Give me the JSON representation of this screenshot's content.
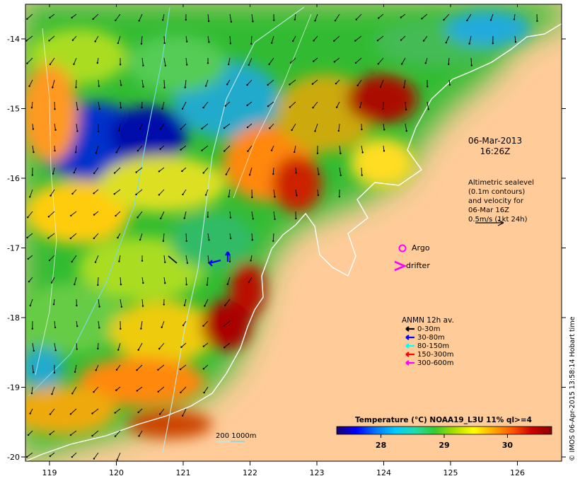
{
  "colors": {
    "land": "#FFCC99",
    "frame": "#000000",
    "coastline": "#FFFFFF",
    "argo_marker": "#FF00FF",
    "drifter_marker": "#FF00FF",
    "isobath_200": "#BFE8E8",
    "isobath_1000": "#79D9E8",
    "vector_default": "#000000"
  },
  "axes": {
    "longitude_ticks": [
      "119",
      "120",
      "121",
      "122",
      "123",
      "124",
      "125",
      "126"
    ],
    "latitude_ticks": [
      "-14",
      "-15",
      "-16",
      "-17",
      "-18",
      "-19",
      "-20"
    ]
  },
  "annotations": {
    "datetime_line1": "06-Mar-2013",
    "datetime_line2": "16:26Z",
    "altimetry_lines": [
      "Altimetric sealevel",
      "(0.1m contours)",
      "and velocity for",
      "06-Mar 16Z",
      "0.5m/s (1kt 24h)"
    ]
  },
  "legend": {
    "argo_label": "Argo",
    "drifter_label": "drifter",
    "anmn_title": "ANMN 12h av.",
    "depth_bins": [
      {
        "label": "0-30m",
        "color": "#000000"
      },
      {
        "label": "30-80m",
        "color": "#0000FF"
      },
      {
        "label": "80-150m",
        "color": "#00FFFF"
      },
      {
        "label": "150-300m",
        "color": "#FF0000"
      },
      {
        "label": "300-600m",
        "color": "#FF00FF"
      }
    ],
    "isobath_label": "200 1000m"
  },
  "colorbar": {
    "title": "Temperature (°C) NOAA19_L3U 11% ql>=4",
    "min": 27.3,
    "max": 30.7,
    "ticks": [
      28,
      29,
      30
    ],
    "tick_labels": [
      "28",
      "29",
      "30"
    ],
    "stops": [
      "#1A006B",
      "#0000FF",
      "#0077FF",
      "#00CCFF",
      "#22DDAA",
      "#33CC33",
      "#AADD00",
      "#FFFF00",
      "#FFAA00",
      "#FF5500",
      "#CC0000",
      "#880000"
    ]
  },
  "credit": "© IMOS 06-Apr-2015 13:58:14 Hobart time"
}
